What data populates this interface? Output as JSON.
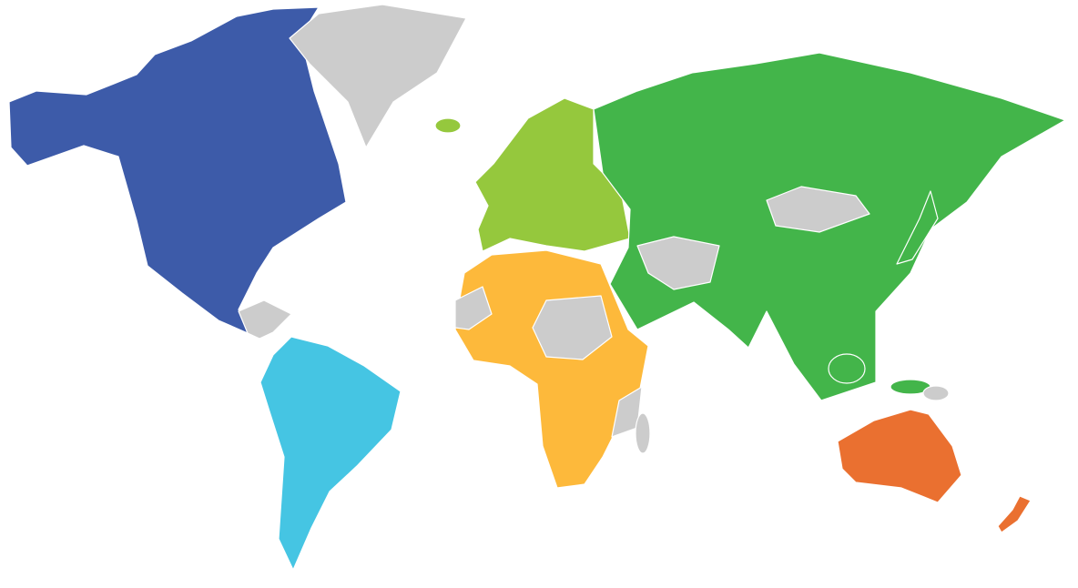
{
  "map": {
    "background": "#ffffff",
    "border_color": "#ffffff",
    "region_colors": {
      "north_america": "#3d5ba9",
      "south_america": "#45c5e3",
      "europe": "#95c83d",
      "asia": "#43b54a",
      "africa": "#fdb93b",
      "oceania": "#ea7030",
      "no_data": "#cccccc"
    }
  }
}
